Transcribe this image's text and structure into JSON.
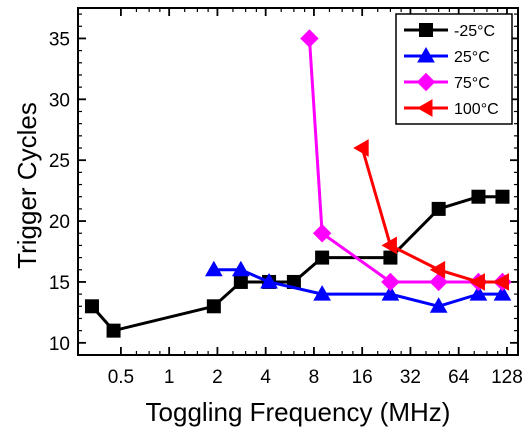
{
  "chart_data": {
    "type": "line",
    "xlabel": "Toggling Frequency (MHz)",
    "ylabel": "Trigger Cycles",
    "x_scale": "log2",
    "xlim": [
      0.27,
      150
    ],
    "ylim": [
      9,
      37.5
    ],
    "x_ticks": [
      0.5,
      1,
      2,
      4,
      8,
      16,
      32,
      64,
      128
    ],
    "x_tick_labels": [
      "0.5",
      "1",
      "2",
      "4",
      "8",
      "16",
      "32",
      "64",
      "128"
    ],
    "y_ticks": [
      10,
      15,
      20,
      25,
      30,
      35
    ],
    "y_tick_labels": [
      "10",
      "15",
      "20",
      "25",
      "30",
      "35"
    ],
    "grid": false,
    "legend_position": "top-right",
    "series": [
      {
        "name": "-25°C",
        "color": "#000000",
        "marker": "square",
        "x": [
          0.33,
          0.45,
          1.9,
          2.8,
          4.2,
          6.0,
          9.0,
          24.0,
          48.0,
          85.0,
          120.0
        ],
        "y": [
          13,
          11,
          13,
          15,
          15,
          15,
          17,
          17,
          21,
          22,
          22
        ]
      },
      {
        "name": "25°C",
        "color": "#0000ff",
        "marker": "triangle-up",
        "x": [
          1.9,
          2.8,
          4.2,
          9.0,
          24.0,
          48.0,
          85.0,
          120.0
        ],
        "y": [
          16,
          16,
          15,
          14,
          14,
          13,
          14,
          14
        ]
      },
      {
        "name": "75°C",
        "color": "#ff00ff",
        "marker": "diamond",
        "x": [
          7.5,
          9.0,
          24.0,
          48.0,
          85.0,
          120.0
        ],
        "y": [
          35,
          19,
          15,
          15,
          15,
          15
        ]
      },
      {
        "name": "100°C",
        "color": "#ff0000",
        "marker": "triangle-left",
        "x": [
          16.0,
          24.0,
          48.0,
          85.0,
          120.0
        ],
        "y": [
          26,
          18,
          16,
          15,
          15
        ]
      }
    ]
  }
}
